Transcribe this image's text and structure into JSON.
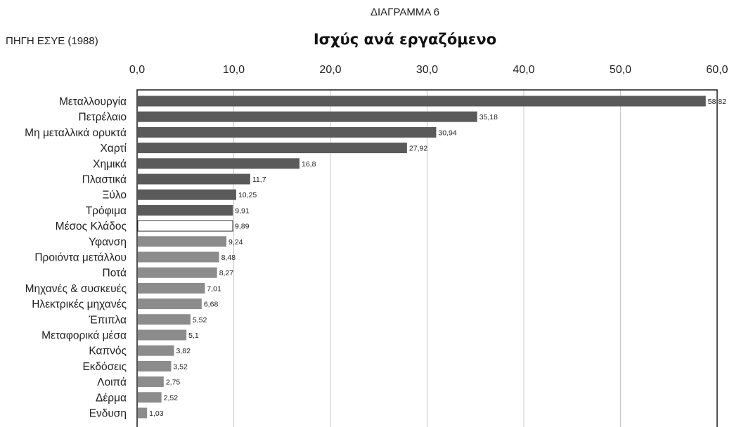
{
  "source_label": "ΠΗΓΗ  ΕΣΥΕ (1988)",
  "chart_data": {
    "type": "bar",
    "orientation": "horizontal",
    "subtitle": "ΔΙΑΓΡΑΜΜΑ 6",
    "title": "Ισχύς ανά εργαζόμενο",
    "xlim": [
      0,
      60
    ],
    "x_ticks": [
      "0,0",
      "10,0",
      "20,0",
      "30,0",
      "40,0",
      "50,0",
      "60,0"
    ],
    "grid": true,
    "categories": [
      "Μεταλλουργία",
      "Πετρέλαιο",
      "Μη μεταλλικά ορυκτά",
      "Χαρτί",
      "Χημικά",
      "Πλαστικά",
      "Ξύλο",
      "Τρόφιμα",
      "Μέσος Κλάδος",
      "Υφανση",
      "Προιόντα μετάλλου",
      "Ποτά",
      "Μηχανές & συσκευές",
      "Ηλεκτρικές μηχανές",
      "Έπιπλα",
      "Μεταφορικά μέσα",
      "Καπνός",
      "Εκδόσεις",
      "Λοιπά",
      "Δέρμα",
      "Ενδυση"
    ],
    "values": [
      58.82,
      35.18,
      30.94,
      27.92,
      16.8,
      11.7,
      10.25,
      9.91,
      9.89,
      9.24,
      8.48,
      8.27,
      7.01,
      6.68,
      5.52,
      5.1,
      3.82,
      3.52,
      2.75,
      2.52,
      1.03
    ],
    "value_labels": [
      "58,82",
      "35,18",
      "30,94",
      "27,92",
      "16,8",
      "11,7",
      "10,25",
      "9,91",
      "9,89",
      "9,24",
      "8,48",
      "8,27",
      "7,01",
      "6,68",
      "5,52",
      "5,1",
      "3,82",
      "3,52",
      "2,75",
      "2,52",
      "1,03"
    ],
    "colors": {
      "dark": "#5a5a5a",
      "light": "#8c8c8c",
      "highlight": "#ffffff",
      "border": "#1a1a1a",
      "grid": "#c8c8c8"
    },
    "highlight_category": "Μέσος Κλάδος",
    "dark_bar_count": 8
  }
}
